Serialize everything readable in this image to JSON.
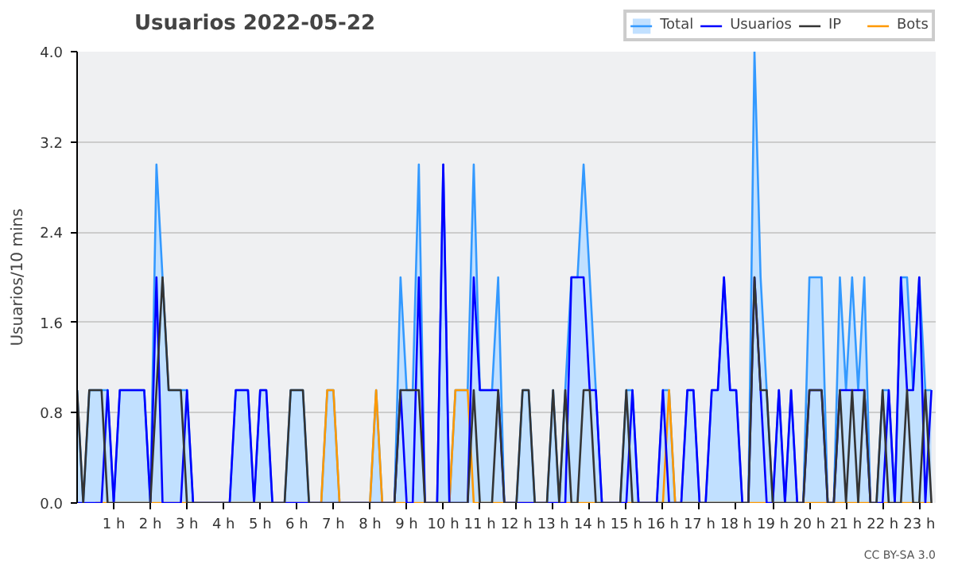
{
  "chart_data": {
    "type": "line",
    "title": "Usuarios  2022-05-22",
    "ylabel": "Usuarios/10 mins",
    "x": [
      0,
      0.167,
      0.333,
      0.5,
      0.667,
      0.833,
      1,
      1.167,
      1.333,
      1.5,
      1.667,
      1.833,
      2,
      2.167,
      2.333,
      2.5,
      2.667,
      2.833,
      3,
      3.167,
      3.333,
      3.5,
      3.667,
      3.833,
      4,
      4.167,
      4.333,
      4.5,
      4.667,
      4.833,
      5,
      5.167,
      5.333,
      5.5,
      5.667,
      5.833,
      6,
      6.167,
      6.333,
      6.5,
      6.667,
      6.833,
      7,
      7.167,
      7.333,
      7.5,
      7.667,
      7.833,
      8,
      8.167,
      8.333,
      8.5,
      8.667,
      8.833,
      9,
      9.167,
      9.333,
      9.5,
      9.667,
      9.833,
      10,
      10.167,
      10.333,
      10.5,
      10.667,
      10.833,
      11,
      11.167,
      11.333,
      11.5,
      11.667,
      11.833,
      12,
      12.167,
      12.333,
      12.5,
      12.667,
      12.833,
      13,
      13.167,
      13.333,
      13.5,
      13.667,
      13.833,
      14,
      14.167,
      14.333,
      14.5,
      14.667,
      14.833,
      15,
      15.167,
      15.333,
      15.5,
      15.667,
      15.833,
      16,
      16.167,
      16.333,
      16.5,
      16.667,
      16.833,
      17,
      17.167,
      17.333,
      17.5,
      17.667,
      17.833,
      18,
      18.167,
      18.333,
      18.5,
      18.667,
      18.833,
      19,
      19.167,
      19.333,
      19.5,
      19.667,
      19.833,
      20,
      20.167,
      20.333,
      20.5,
      20.667,
      20.833,
      21,
      21.167,
      21.333,
      21.5,
      21.667,
      21.833,
      22,
      22.167,
      22.333,
      22.5,
      22.667,
      22.833,
      23,
      23.167,
      23.333
    ],
    "series": [
      {
        "name": "Total",
        "type": "area",
        "color": "#3399ff",
        "values": [
          1,
          0,
          1,
          1,
          1,
          1,
          0,
          1,
          1,
          1,
          1,
          1,
          0,
          3,
          2,
          1,
          1,
          1,
          1,
          0,
          0,
          0,
          0,
          0,
          0,
          0,
          1,
          1,
          1,
          0,
          1,
          1,
          0,
          0,
          0,
          1,
          1,
          1,
          0,
          0,
          0,
          1,
          1,
          0,
          0,
          0,
          0,
          0,
          0,
          1,
          0,
          0,
          0,
          2,
          1,
          1,
          3,
          0,
          0,
          0,
          3,
          0,
          1,
          1,
          1,
          3,
          1,
          1,
          1,
          2,
          0,
          0,
          0,
          1,
          1,
          0,
          0,
          0,
          1,
          0,
          1,
          2,
          2,
          3,
          2,
          1,
          0,
          0,
          0,
          0,
          1,
          1,
          0,
          0,
          0,
          0,
          1,
          1,
          0,
          0,
          1,
          1,
          0,
          0,
          1,
          1,
          2,
          1,
          1,
          0,
          0,
          4,
          2,
          1,
          0,
          1,
          0,
          1,
          0,
          0,
          2,
          2,
          2,
          0,
          0,
          2,
          1,
          2,
          1,
          2,
          0,
          0,
          1,
          1,
          0,
          2,
          2,
          1,
          2,
          1,
          1
        ]
      },
      {
        "name": "Usuarios",
        "color": "#0000ff",
        "values": [
          0,
          0,
          0,
          0,
          0,
          1,
          0,
          1,
          1,
          1,
          1,
          1,
          0,
          2,
          0,
          0,
          0,
          0,
          1,
          0,
          0,
          0,
          0,
          0,
          0,
          0,
          1,
          1,
          1,
          0,
          1,
          1,
          0,
          0,
          0,
          0,
          0,
          0,
          0,
          0,
          0,
          0,
          0,
          0,
          0,
          0,
          0,
          0,
          0,
          0,
          0,
          0,
          0,
          1,
          0,
          0,
          2,
          0,
          0,
          0,
          3,
          0,
          0,
          0,
          0,
          2,
          1,
          1,
          1,
          1,
          0,
          0,
          0,
          0,
          0,
          0,
          0,
          0,
          0,
          0,
          0,
          2,
          2,
          2,
          1,
          1,
          0,
          0,
          0,
          0,
          0,
          1,
          0,
          0,
          0,
          0,
          1,
          0,
          0,
          0,
          1,
          1,
          0,
          0,
          1,
          1,
          2,
          1,
          1,
          0,
          0,
          2,
          1,
          0,
          0,
          1,
          0,
          1,
          0,
          0,
          1,
          1,
          1,
          0,
          0,
          1,
          1,
          1,
          1,
          1,
          0,
          0,
          0,
          1,
          0,
          2,
          1,
          1,
          2,
          0,
          1
        ]
      },
      {
        "name": "IP",
        "color": "#333333",
        "values": [
          1,
          0,
          1,
          1,
          1,
          0,
          0,
          0,
          0,
          0,
          0,
          0,
          0,
          1,
          2,
          1,
          1,
          1,
          0,
          0,
          0,
          0,
          0,
          0,
          0,
          0,
          0,
          0,
          0,
          0,
          0,
          0,
          0,
          0,
          0,
          1,
          1,
          1,
          0,
          0,
          0,
          0,
          0,
          0,
          0,
          0,
          0,
          0,
          0,
          0,
          0,
          0,
          0,
          1,
          1,
          1,
          1,
          0,
          0,
          0,
          0,
          0,
          0,
          0,
          0,
          1,
          0,
          0,
          0,
          1,
          0,
          0,
          0,
          1,
          1,
          0,
          0,
          0,
          1,
          0,
          1,
          0,
          0,
          1,
          1,
          0,
          0,
          0,
          0,
          0,
          1,
          0,
          0,
          0,
          0,
          0,
          0,
          0,
          0,
          0,
          0,
          0,
          0,
          0,
          0,
          0,
          0,
          0,
          0,
          0,
          0,
          2,
          1,
          1,
          0,
          0,
          0,
          0,
          0,
          0,
          1,
          1,
          1,
          0,
          0,
          1,
          0,
          1,
          0,
          1,
          0,
          0,
          1,
          0,
          0,
          0,
          1,
          0,
          0,
          1,
          0
        ]
      },
      {
        "name": "Bots",
        "color": "#ff9900",
        "values": [
          null,
          null,
          null,
          0,
          0,
          0,
          0,
          0,
          0,
          0,
          0,
          0,
          0,
          0,
          0,
          0,
          0,
          0,
          0,
          0,
          0,
          0,
          0,
          0,
          0,
          0,
          0,
          0,
          0,
          0,
          0,
          0,
          0,
          0,
          0,
          0,
          0,
          0,
          0,
          0,
          0,
          1,
          1,
          0,
          0,
          0,
          0,
          0,
          0,
          1,
          0,
          0,
          0,
          0,
          0,
          0,
          0,
          0,
          0,
          0,
          0,
          0,
          1,
          1,
          1,
          0,
          0,
          0,
          0,
          0,
          0,
          0,
          0,
          0,
          0,
          0,
          0,
          0,
          0,
          0,
          0,
          0,
          0,
          0,
          0,
          0,
          0,
          0,
          0,
          0,
          0,
          0,
          0,
          0,
          0,
          0,
          0,
          1,
          0,
          0,
          0,
          0,
          0,
          0,
          0,
          0,
          0,
          0,
          0,
          0,
          0,
          0,
          0,
          0,
          0,
          0,
          0,
          0,
          0,
          0,
          0,
          0,
          0,
          0,
          0,
          0,
          0,
          0,
          0,
          0,
          0,
          0,
          0,
          0,
          0,
          0,
          0,
          0,
          0,
          0,
          0
        ]
      }
    ],
    "xlim": [
      0,
      23.45
    ],
    "xticks": [
      {
        "value": 1,
        "label": "1 h"
      },
      {
        "value": 2,
        "label": "2 h"
      },
      {
        "value": 3,
        "label": "3 h"
      },
      {
        "value": 4,
        "label": "4 h"
      },
      {
        "value": 5,
        "label": "5 h"
      },
      {
        "value": 6,
        "label": "6 h"
      },
      {
        "value": 7,
        "label": "7 h"
      },
      {
        "value": 8,
        "label": "8 h"
      },
      {
        "value": 9,
        "label": "9 h"
      },
      {
        "value": 10,
        "label": "10 h"
      },
      {
        "value": 11,
        "label": "11 h"
      },
      {
        "value": 12,
        "label": "12 h"
      },
      {
        "value": 13,
        "label": "13 h"
      },
      {
        "value": 14,
        "label": "14 h"
      },
      {
        "value": 15,
        "label": "15 h"
      },
      {
        "value": 16,
        "label": "16 h"
      },
      {
        "value": 17,
        "label": "17 h"
      },
      {
        "value": 18,
        "label": "18 h"
      },
      {
        "value": 19,
        "label": "19 h"
      },
      {
        "value": 20,
        "label": "20 h"
      },
      {
        "value": 21,
        "label": "21 h"
      },
      {
        "value": 22,
        "label": "22 h"
      },
      {
        "value": 23,
        "label": "23 h"
      }
    ],
    "ylim": [
      0,
      4
    ],
    "yticks": [
      {
        "value": 0,
        "label": "0.0"
      },
      {
        "value": 0.8,
        "label": "0.8"
      },
      {
        "value": 1.6,
        "label": "1.6"
      },
      {
        "value": 2.4,
        "label": "2.4"
      },
      {
        "value": 3.2,
        "label": "3.2"
      },
      {
        "value": 4,
        "label": "4.0"
      }
    ],
    "grid": "y",
    "legend": "top right",
    "marker": "none",
    "line_style": "solid",
    "annotations": [
      "CC BY-SA 3.0"
    ]
  }
}
